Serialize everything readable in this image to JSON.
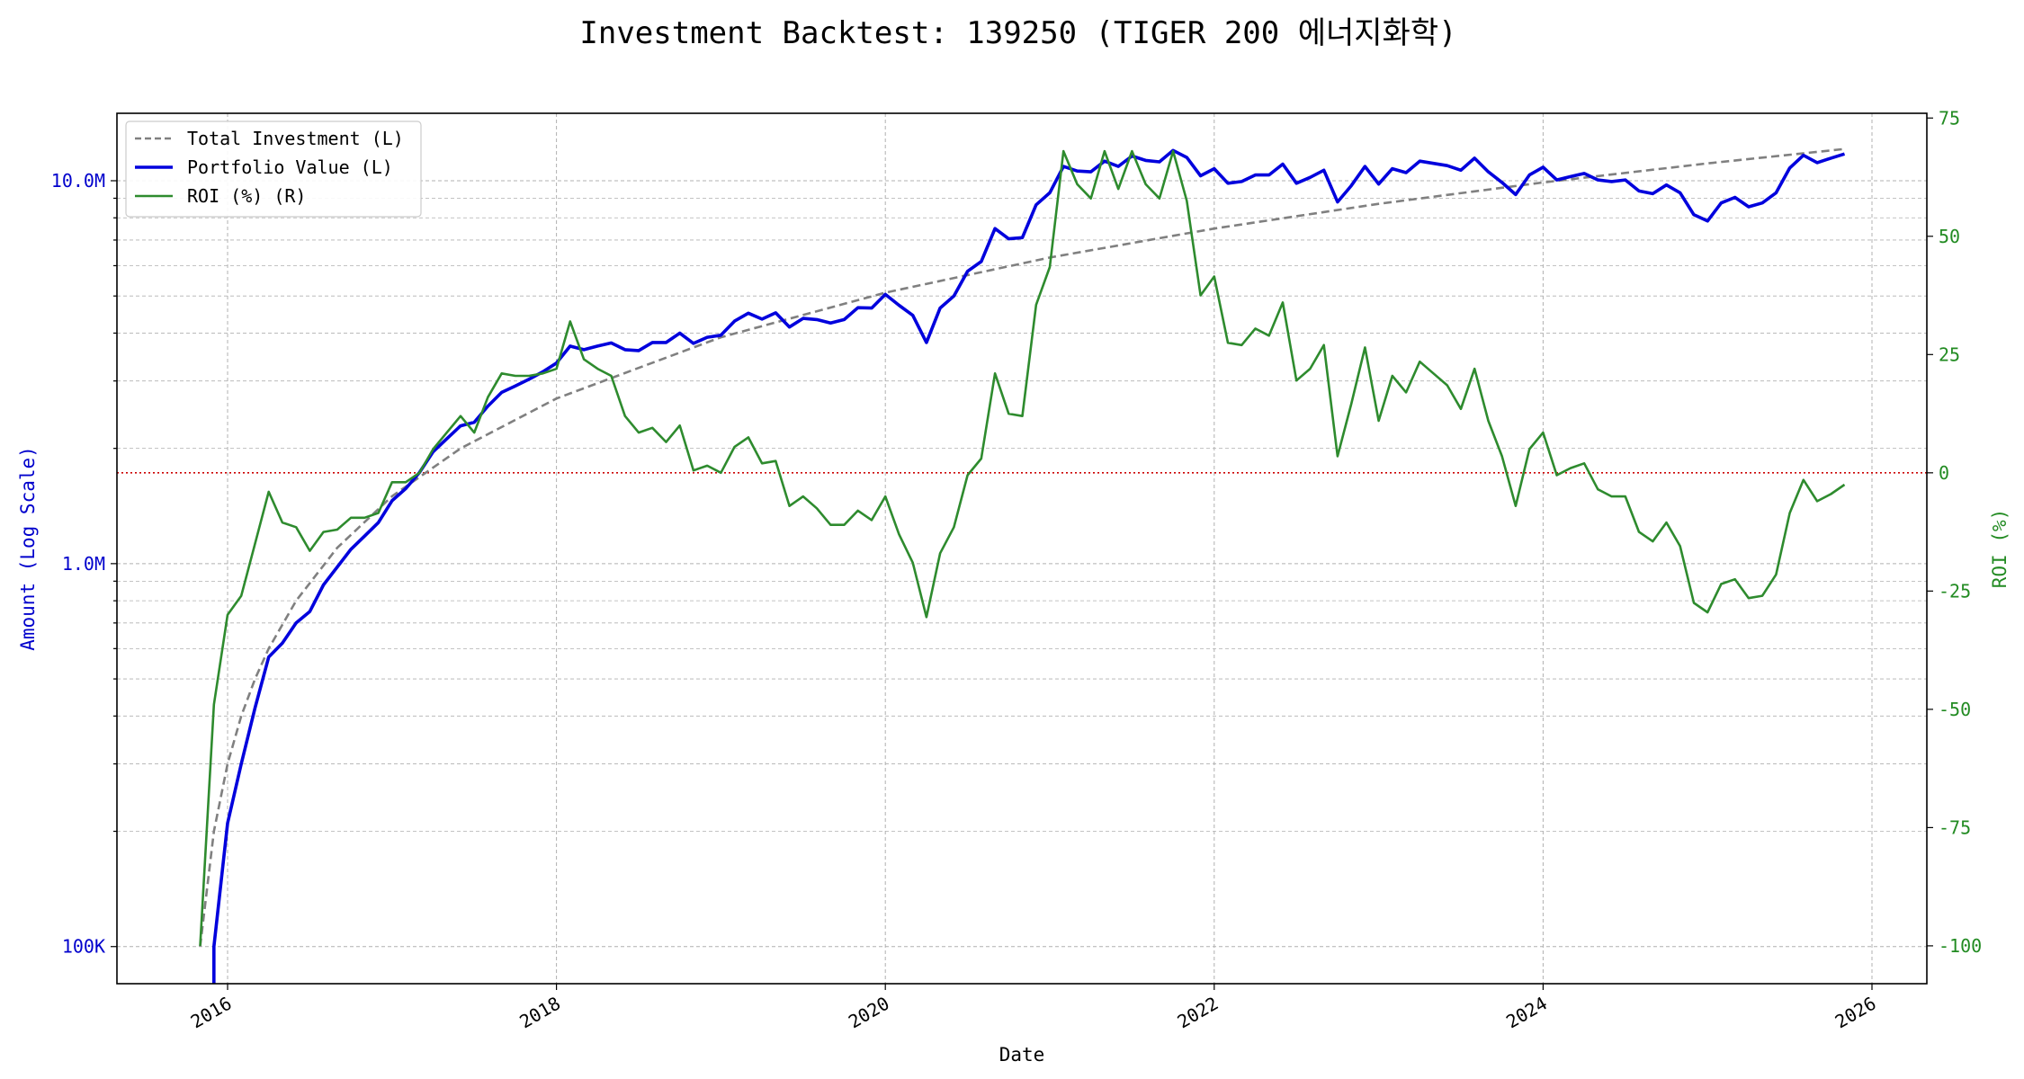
{
  "chart_data": {
    "type": "line",
    "title": "Investment Backtest: 139250 (TIGER 200 에너지화학)",
    "xlabel": "Date",
    "ylabel_left": "Amount (Log Scale)",
    "ylabel_right": "ROI (%)",
    "x_ticks": [
      "2016",
      "2018",
      "2020",
      "2022",
      "2024",
      "2026"
    ],
    "y_left_scale": "log",
    "y_left_lim": [
      80000,
      15000000
    ],
    "y_left_ticks": [
      {
        "value": 100000,
        "label": "100K"
      },
      {
        "value": 1000000,
        "label": "1.0M"
      },
      {
        "value": 10000000,
        "label": "10.0M"
      }
    ],
    "y_right_lim": [
      -108,
      76
    ],
    "y_right_ticks": [
      -100,
      -75,
      -50,
      -25,
      0,
      25,
      50,
      75
    ],
    "grid": true,
    "legend_position": "upper-left",
    "colors": {
      "investment": "#808080",
      "portfolio": "#0000dd",
      "roi": "#2e8b2e",
      "zero_line": "#cc0000",
      "left_axis": "#0000cc",
      "right_axis": "#228b22"
    },
    "zero_line": {
      "axis": "right",
      "value": 0
    },
    "series": [
      {
        "name": "Total Investment (L)",
        "axis": "left",
        "style": "dashed",
        "x": [
          "2015-11",
          "2015-12",
          "2016-01",
          "2016-02",
          "2016-03",
          "2016-04",
          "2016-06",
          "2016-09",
          "2017-01",
          "2017-06",
          "2018-01",
          "2019-01",
          "2020-01",
          "2021-01",
          "2022-01",
          "2023-01",
          "2024-01",
          "2025-01",
          "2025-11"
        ],
        "y": [
          100000,
          200000,
          300000,
          400000,
          500000,
          600000,
          800000,
          1100000,
          1500000,
          2000000,
          2700000,
          3900000,
          5100000,
          6300000,
          7500000,
          8700000,
          9900000,
          11100000,
          12100000
        ]
      },
      {
        "name": "Portfolio Value (L)",
        "axis": "left",
        "style": "solid",
        "x": [
          "2015-12",
          "2015-12",
          "2016-01",
          "2016-02",
          "2016-03",
          "2016-04",
          "2016-05",
          "2016-06",
          "2016-07",
          "2016-08",
          "2016-09",
          "2016-10",
          "2016-11",
          "2016-12",
          "2017-01",
          "2017-02",
          "2017-03",
          "2017-04",
          "2017-05",
          "2017-06",
          "2017-07",
          "2017-08",
          "2017-09",
          "2017-10",
          "2017-11",
          "2017-12",
          "2018-01",
          "2018-02",
          "2018-03",
          "2018-04",
          "2018-05",
          "2018-06",
          "2018-07",
          "2018-08",
          "2018-09",
          "2018-10",
          "2018-11",
          "2018-12",
          "2019-01",
          "2019-02",
          "2019-03",
          "2019-04",
          "2019-05",
          "2019-06",
          "2019-07",
          "2019-08",
          "2019-09",
          "2019-10",
          "2019-11",
          "2019-12",
          "2020-01",
          "2020-02",
          "2020-03",
          "2020-04",
          "2020-05",
          "2020-06",
          "2020-07",
          "2020-08",
          "2020-09",
          "2020-10",
          "2020-11",
          "2020-12",
          "2021-01",
          "2021-02",
          "2021-03",
          "2021-04",
          "2021-05",
          "2021-06",
          "2021-07",
          "2021-08",
          "2021-09",
          "2021-10",
          "2021-11",
          "2021-12",
          "2022-01",
          "2022-02",
          "2022-03",
          "2022-04",
          "2022-05",
          "2022-06",
          "2022-07",
          "2022-08",
          "2022-09",
          "2022-10",
          "2022-11",
          "2022-12",
          "2023-01",
          "2023-02",
          "2023-03",
          "2023-04",
          "2023-05",
          "2023-06",
          "2023-07",
          "2023-08",
          "2023-09",
          "2023-10",
          "2023-11",
          "2023-12",
          "2024-01",
          "2024-02",
          "2024-03",
          "2024-04",
          "2024-05",
          "2024-06",
          "2024-07",
          "2024-08",
          "2024-09",
          "2024-10",
          "2024-11",
          "2024-12",
          "2025-01",
          "2025-02",
          "2025-03",
          "2025-04",
          "2025-05",
          "2025-06",
          "2025-07",
          "2025-08",
          "2025-09",
          "2025-10",
          "2025-11"
        ],
        "y": [
          75000,
          100000,
          210000,
          300000,
          420000,
          570000,
          620000,
          700000,
          750000,
          880000,
          980000,
          1090000,
          1180000,
          1280000,
          1460000,
          1570000,
          1730000,
          1960000,
          2120000,
          2290000,
          2340000,
          2580000,
          2800000,
          2910000,
          3030000,
          3170000,
          3340000,
          3700000,
          3620000,
          3700000,
          3770000,
          3620000,
          3600000,
          3780000,
          3780000,
          4000000,
          3760000,
          3900000,
          3950000,
          4300000,
          4510000,
          4350000,
          4520000,
          4150000,
          4370000,
          4340000,
          4250000,
          4340000,
          4660000,
          4650000,
          5050000,
          4730000,
          4450000,
          3780000,
          4650000,
          5000000,
          5800000,
          6150000,
          7500000,
          7050000,
          7100000,
          8650000,
          9300000,
          10900000,
          10600000,
          10550000,
          11250000,
          10900000,
          11600000,
          11300000,
          11200000,
          12000000,
          11500000,
          10300000,
          10750000,
          9850000,
          9950000,
          10350000,
          10350000,
          11050000,
          9850000,
          10200000,
          10650000,
          8800000,
          9700000,
          10900000,
          9800000,
          10750000,
          10500000,
          11250000,
          11100000,
          10950000,
          10650000,
          11450000,
          10550000,
          9900000,
          9200000,
          10350000,
          10850000,
          10050000,
          10250000,
          10450000,
          10050000,
          9950000,
          10050000,
          9400000,
          9250000,
          9750000,
          9300000,
          8150000,
          7850000,
          8750000,
          9050000,
          8550000,
          8750000,
          9300000,
          10800000,
          11650000,
          11150000,
          11450000,
          11750000
        ]
      },
      {
        "name": "ROI (%) (R)",
        "axis": "right",
        "style": "solid",
        "x": [
          "2015-11",
          "2015-12",
          "2016-01",
          "2016-02",
          "2016-03",
          "2016-04",
          "2016-05",
          "2016-06",
          "2016-07",
          "2016-08",
          "2016-09",
          "2016-10",
          "2016-11",
          "2016-12",
          "2017-01",
          "2017-02",
          "2017-03",
          "2017-04",
          "2017-05",
          "2017-06",
          "2017-07",
          "2017-08",
          "2017-09",
          "2017-10",
          "2017-11",
          "2017-12",
          "2018-01",
          "2018-02",
          "2018-03",
          "2018-04",
          "2018-05",
          "2018-06",
          "2018-07",
          "2018-08",
          "2018-09",
          "2018-10",
          "2018-11",
          "2018-12",
          "2019-01",
          "2019-02",
          "2019-03",
          "2019-04",
          "2019-05",
          "2019-06",
          "2019-07",
          "2019-08",
          "2019-09",
          "2019-10",
          "2019-11",
          "2019-12",
          "2020-01",
          "2020-02",
          "2020-03",
          "2020-04",
          "2020-05",
          "2020-06",
          "2020-07",
          "2020-08",
          "2020-09",
          "2020-10",
          "2020-11",
          "2020-12",
          "2021-01",
          "2021-02",
          "2021-03",
          "2021-04",
          "2021-05",
          "2021-06",
          "2021-07",
          "2021-08",
          "2021-09",
          "2021-10",
          "2021-11",
          "2021-12",
          "2022-01",
          "2022-02",
          "2022-03",
          "2022-04",
          "2022-05",
          "2022-06",
          "2022-07",
          "2022-08",
          "2022-09",
          "2022-10",
          "2022-11",
          "2022-12",
          "2023-01",
          "2023-02",
          "2023-03",
          "2023-04",
          "2023-05",
          "2023-06",
          "2023-07",
          "2023-08",
          "2023-09",
          "2023-10",
          "2023-11",
          "2023-12",
          "2024-01",
          "2024-02",
          "2024-03",
          "2024-04",
          "2024-05",
          "2024-06",
          "2024-07",
          "2024-08",
          "2024-09",
          "2024-10",
          "2024-11",
          "2024-12",
          "2025-01",
          "2025-02",
          "2025-03",
          "2025-04",
          "2025-05",
          "2025-06",
          "2025-07",
          "2025-08",
          "2025-09",
          "2025-10",
          "2025-11"
        ],
        "y": [
          -100,
          -49,
          -30,
          -26,
          -15,
          -4,
          -10.5,
          -11.5,
          -16.5,
          -12.5,
          -12,
          -9.5,
          -9.5,
          -8.5,
          -2,
          -2,
          0,
          5,
          8.5,
          12,
          8.5,
          16,
          21,
          20.5,
          20.5,
          21,
          22,
          32,
          24,
          22,
          20.5,
          12,
          8.5,
          9.5,
          6.5,
          10,
          0.5,
          1.5,
          0,
          5.5,
          7.5,
          2,
          2.5,
          -7,
          -5,
          -7.5,
          -11,
          -11,
          -8,
          -10,
          -5,
          -13,
          -19,
          -30.5,
          -17,
          -11.5,
          -0.5,
          3,
          21,
          12.5,
          12,
          35.5,
          43.5,
          68,
          61,
          58,
          68,
          60,
          68,
          61,
          58,
          68,
          57.5,
          37.5,
          41.5,
          27.5,
          27,
          30.5,
          29,
          36,
          19.5,
          22,
          27,
          3.5,
          14.5,
          26.5,
          11,
          20.5,
          17,
          23.5,
          21,
          18.5,
          13.5,
          22,
          11,
          3.5,
          -7,
          5,
          8.5,
          -0.5,
          1,
          2,
          -3.5,
          -5,
          -5,
          -12.5,
          -14.5,
          -10.5,
          -15.5,
          -27.5,
          -29.5,
          -23.5,
          -22.5,
          -26.5,
          -26,
          -21.5,
          -8.5,
          -1.5,
          -6,
          -4.5,
          -2.5
        ]
      }
    ]
  }
}
